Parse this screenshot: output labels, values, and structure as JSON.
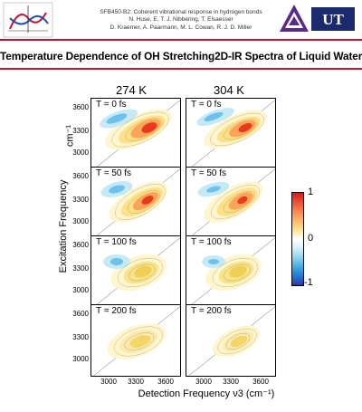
{
  "header": {
    "credit_lines": [
      "SFB450-B2: Coherent vibrational response in hydrogen bonds",
      "N. Huse, E. T. J. Nibbering, T. Elsaesser",
      "D. Kraemer, A. Paarmann, M. L. Cowan, R. J. D. Miller"
    ],
    "logo_right_text": "UT"
  },
  "title": "Temperature Dependence of OH Stretching2D-IR Spectra of Liquid Water",
  "columns": [
    "274 K",
    "304 K"
  ],
  "rows": [
    {
      "T": "T = 0 fs",
      "ylabel_ticks": [
        "3600",
        "3300",
        "3000"
      ]
    },
    {
      "T": "T = 50 fs",
      "ylabel_ticks": [
        "3600",
        "3300",
        "3000"
      ]
    },
    {
      "T": "T = 100 fs",
      "ylabel_ticks": [
        "3600",
        "3300",
        "3000"
      ]
    },
    {
      "T": "T = 200 fs",
      "ylabel_ticks": [
        "3600",
        "3300",
        "3000"
      ]
    }
  ],
  "ylabel": "Excitation Frequency",
  "ylabel_unit": "cm⁻¹",
  "xlabel": "Detection Frequency ν3 (cm⁻¹)",
  "xticks": [
    "3000",
    "3300",
    "3600"
  ],
  "colorbar": {
    "max": "1",
    "mid": "0",
    "min": "-1"
  },
  "colors": {
    "accent_rule": "#c8102e",
    "positive": "#d7191c",
    "negative": "#1f6fd0"
  }
}
